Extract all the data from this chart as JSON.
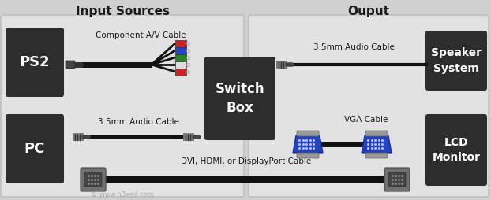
{
  "bg_color": "#d0d0d0",
  "panel_bg": "#e2e2e2",
  "dark_box_color": "#2d2d2d",
  "white_text": "#ffffff",
  "dark_text": "#1a1a1a",
  "title_left": "Input Sources",
  "title_right": "Ouput",
  "box_ps2_label": "PS2",
  "box_pc_label": "PC",
  "box_switch_label": "Switch\nBox",
  "box_speaker_label": "Speaker\nSystem",
  "box_lcd_label": "LCD\nMonitor",
  "label_component": "Component A/V Cable",
  "label_audio_top": "3.5mm Audio Cable",
  "label_audio_bottom": "3.5mm Audio Cable",
  "label_vga": "VGA Cable",
  "label_dvi": "DVI, HDMI, or DisplayPort Cable",
  "watermark": "© www.h3xed.com",
  "cable_black": "#111111",
  "blue_vga": "#2244bb",
  "gray_connector": "#777777",
  "col_red": "#cc2222",
  "col_blue": "#2244cc",
  "col_green": "#228822",
  "col_white": "#dddddd"
}
